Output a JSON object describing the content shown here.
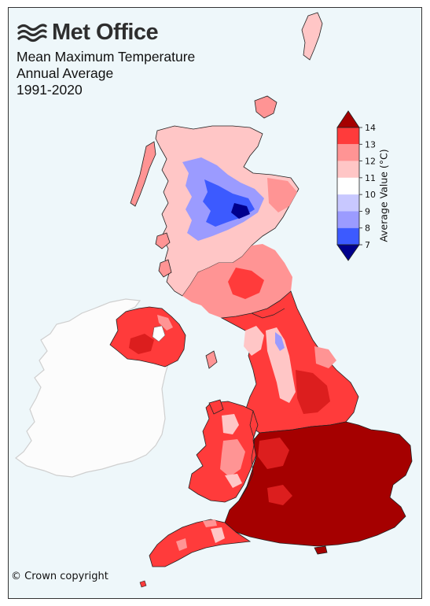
{
  "brand": {
    "name": "Met Office"
  },
  "title": {
    "line1": "Mean Maximum Temperature",
    "line2": "Annual Average",
    "line3": "1991-2020"
  },
  "colorbar": {
    "label": "Average Value (°C)",
    "ticks": [
      "14",
      "13",
      "12",
      "11",
      "10",
      "9",
      "8",
      "7"
    ],
    "bands": [
      {
        "from": 13,
        "to": 14,
        "color": "#ff3b3b"
      },
      {
        "from": 12,
        "to": 13,
        "color": "#ff9494"
      },
      {
        "from": 11,
        "to": 12,
        "color": "#ffc6c6"
      },
      {
        "from": 10,
        "to": 11,
        "color": "#ffffff"
      },
      {
        "from": 9,
        "to": 10,
        "color": "#c8c8ff"
      },
      {
        "from": 8,
        "to": 9,
        "color": "#9b9bff"
      },
      {
        "from": 7,
        "to": 8,
        "color": "#3c5aff"
      }
    ],
    "over_color": "#a50000",
    "under_color": "#00008c"
  },
  "colors": {
    "background_sea": "#eef7fa",
    "ireland_land": "#fcfcfc",
    "warmest": "#a50000",
    "warm": "#dc1e1e",
    "mild": "#ff3b3b",
    "cool_pink": "#ff9494",
    "pale": "#ffc6c6",
    "cold_blue": "#2a3cff"
  },
  "footer": {
    "copyright": "© Crown copyright"
  }
}
